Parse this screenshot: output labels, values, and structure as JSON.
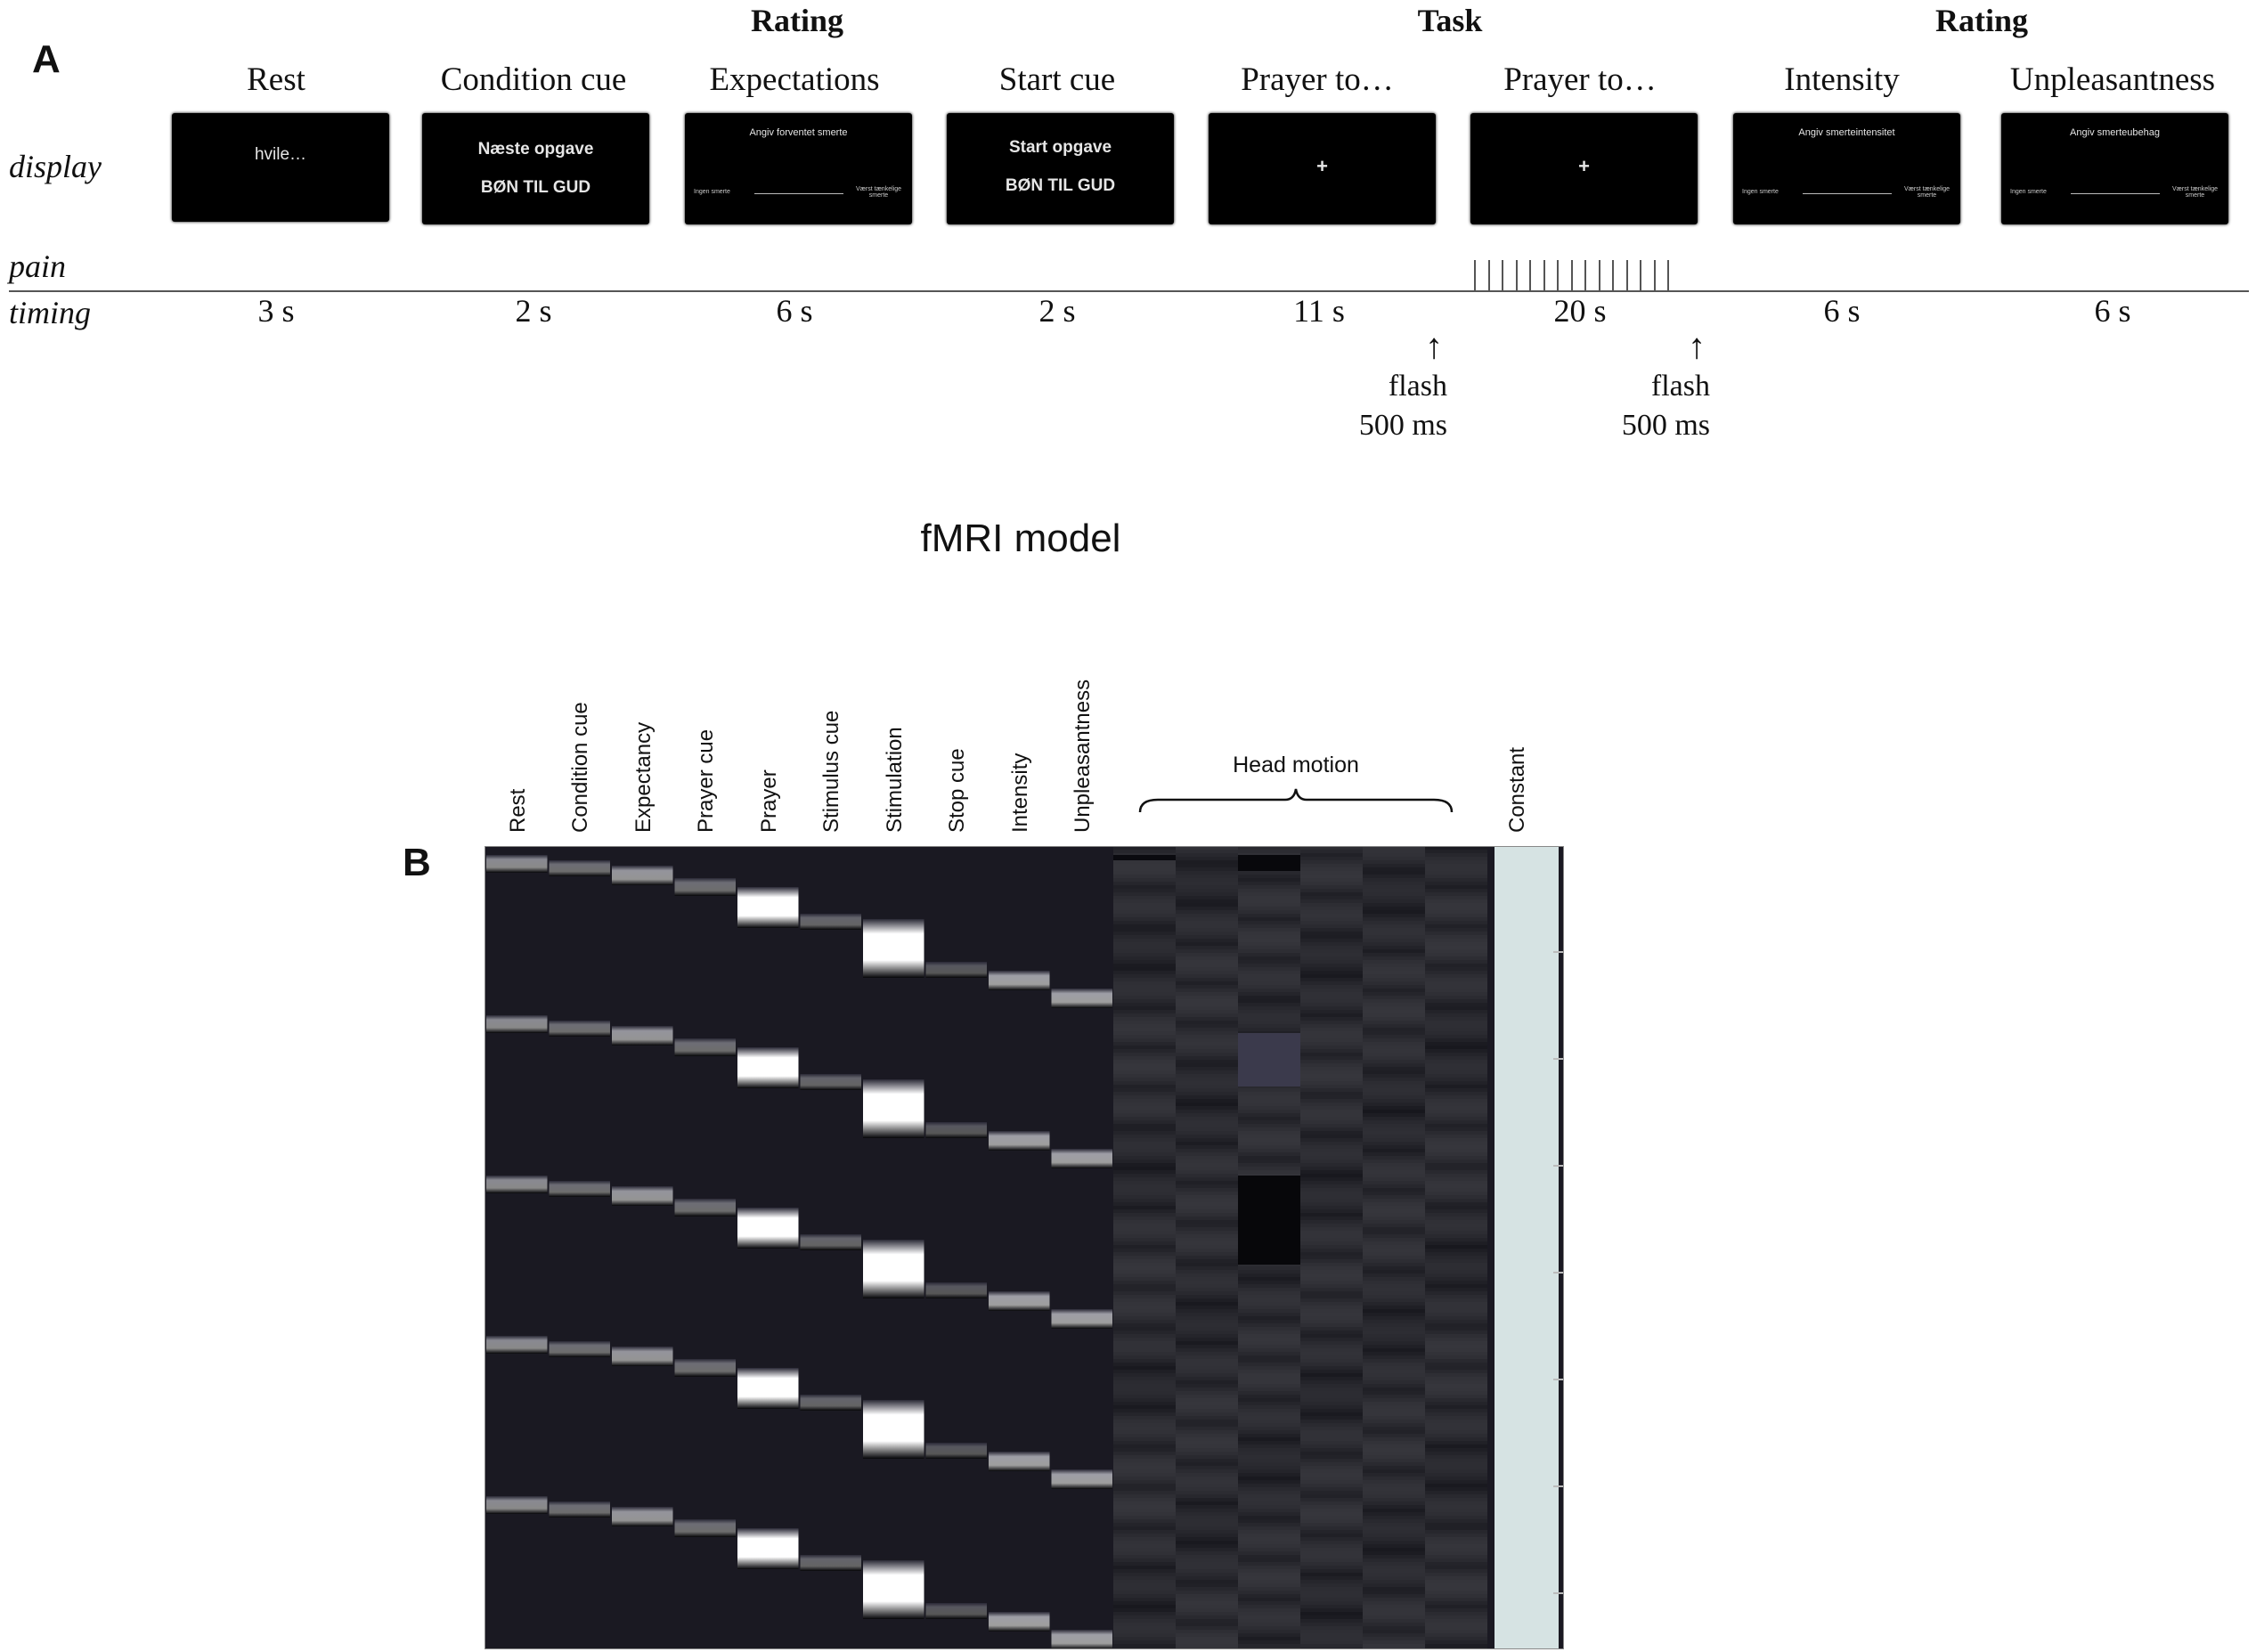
{
  "panel_a": {
    "letter": "A",
    "group_headers": [
      "Rating",
      "Task",
      "Rating"
    ],
    "row_labels": {
      "display": "display",
      "pain": "pain",
      "timing": "timing"
    },
    "steps": [
      {
        "title": "Rest",
        "time": "3 s",
        "screen": [
          "hvile…"
        ]
      },
      {
        "title": "Condition cue",
        "time": "2 s",
        "screen": [
          "Næste opgave",
          "BØN TIL GUD"
        ]
      },
      {
        "title": "Expectations",
        "time": "6 s",
        "screen": [
          "Angiv forventet smerte",
          "Ingen smerte",
          "Værst tænkelige smerte"
        ]
      },
      {
        "title": "Start cue",
        "time": "2 s",
        "screen": [
          "Start opgave",
          "BØN TIL GUD"
        ]
      },
      {
        "title": "Prayer to…",
        "time": "11 s",
        "screen": [
          "+"
        ]
      },
      {
        "title": "Prayer to…",
        "time": "20 s",
        "screen": [
          "+"
        ]
      },
      {
        "title": "Intensity",
        "time": "6 s",
        "screen": [
          "Angiv smerteintensitet",
          "Ingen smerte",
          "Værst tænkelige smerte"
        ]
      },
      {
        "title": "Unpleasantness",
        "time": "6 s",
        "screen": [
          "Angiv smerteubehag",
          "Ingen smerte",
          "Værst tænkelige smerte"
        ]
      }
    ],
    "flash_notes": [
      {
        "line1": "flash",
        "line2": "500 ms"
      },
      {
        "line1": "flash",
        "line2": "500 ms"
      }
    ],
    "pain_tick_count": 15
  },
  "panel_b": {
    "letter": "B",
    "title": "fMRI model",
    "columns": [
      "Rest",
      "Condition cue",
      "Expectancy",
      "Prayer cue",
      "Prayer",
      "Stimulus cue",
      "Stimulation",
      "Stop cue",
      "Intensity",
      "Unpleasantness"
    ],
    "head_motion_label": "Head motion",
    "constant_label": "Constant",
    "trials": 5
  }
}
